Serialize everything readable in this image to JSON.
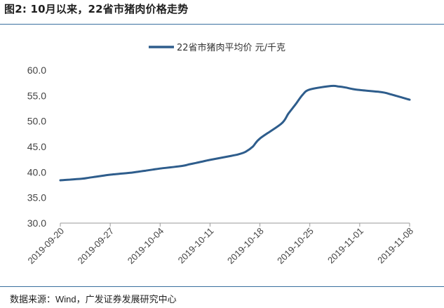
{
  "figure": {
    "title": "图2:  10月以来，22省市猪肉价格走势",
    "source_prefix": "数据来源：",
    "source_brand": "Wind",
    "source_suffix": "，广发证券发展研究中心"
  },
  "chart_data": {
    "type": "line",
    "x": [
      "2019-09-20",
      "2019-09-23",
      "2019-09-24",
      "2019-09-25",
      "2019-09-26",
      "2019-09-27",
      "2019-09-30",
      "2019-10-01",
      "2019-10-02",
      "2019-10-03",
      "2019-10-04",
      "2019-10-07",
      "2019-10-08",
      "2019-10-09",
      "2019-10-10",
      "2019-10-11",
      "2019-10-14",
      "2019-10-15",
      "2019-10-16",
      "2019-10-17",
      "2019-10-18",
      "2019-10-21",
      "2019-10-22",
      "2019-10-23",
      "2019-10-24",
      "2019-10-25",
      "2019-10-28",
      "2019-10-29",
      "2019-10-30",
      "2019-10-31",
      "2019-11-01",
      "2019-11-04",
      "2019-11-05",
      "2019-11-06",
      "2019-11-07",
      "2019-11-08"
    ],
    "series": [
      {
        "name": "22省市猪肉平均价 元/千克",
        "color": "#2e5d8c",
        "values": [
          38.4,
          38.7,
          38.9,
          39.1,
          39.3,
          39.5,
          39.9,
          40.1,
          40.3,
          40.5,
          40.7,
          41.2,
          41.5,
          41.8,
          42.1,
          42.4,
          43.2,
          43.5,
          44.0,
          45.0,
          46.6,
          49.5,
          51.5,
          53.3,
          55.2,
          56.2,
          56.9,
          56.8,
          56.6,
          56.3,
          56.1,
          55.7,
          55.4,
          55.0,
          54.6,
          54.2
        ]
      }
    ],
    "x_ticks": [
      "2019-09-20",
      "2019-09-27",
      "2019-10-04",
      "2019-10-11",
      "2019-10-18",
      "2019-10-25",
      "2019-11-01",
      "2019-11-08"
    ],
    "y_ticks": [
      "30.0",
      "35.0",
      "40.0",
      "45.0",
      "50.0",
      "55.0",
      "60.0"
    ],
    "ylim": [
      30,
      60
    ],
    "title": "",
    "xlabel": "",
    "ylabel": "",
    "grid": false,
    "legend_position": "top-center"
  }
}
